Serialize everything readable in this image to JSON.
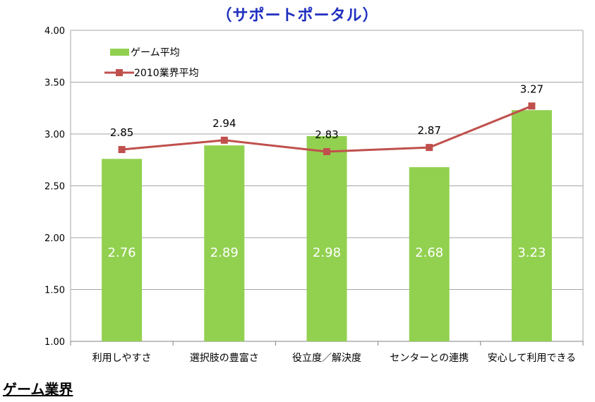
{
  "title": "（サポートポータル）",
  "section_heading": "ゲーム業界",
  "colors": {
    "bar": "#92d050",
    "line": "#c0504d",
    "grid": "#a6a6a6",
    "title": "#1f2fbf"
  },
  "chart_data": {
    "type": "bar",
    "title": "（サポートポータル）",
    "categories": [
      "利用しやすさ",
      "選択肢の豊富さ",
      "役立度／解決度",
      "センターとの連携",
      "安心して利用できる"
    ],
    "ylim": [
      1.0,
      4.0
    ],
    "yticks": [
      "1.00",
      "1.50",
      "2.00",
      "2.50",
      "3.00",
      "3.50",
      "4.00"
    ],
    "grid": true,
    "legend_position": "top-left",
    "series": [
      {
        "name": "ゲーム平均",
        "kind": "bar",
        "values": [
          2.76,
          2.89,
          2.98,
          2.68,
          3.23
        ],
        "labels": [
          "2.76",
          "2.89",
          "2.98",
          "2.68",
          "3.23"
        ]
      },
      {
        "name": "2010業界平均",
        "kind": "line",
        "values": [
          2.85,
          2.94,
          2.83,
          2.87,
          3.27
        ],
        "labels": [
          "2.85",
          "2.94",
          "2.83",
          "2.87",
          "3.27"
        ]
      }
    ]
  }
}
